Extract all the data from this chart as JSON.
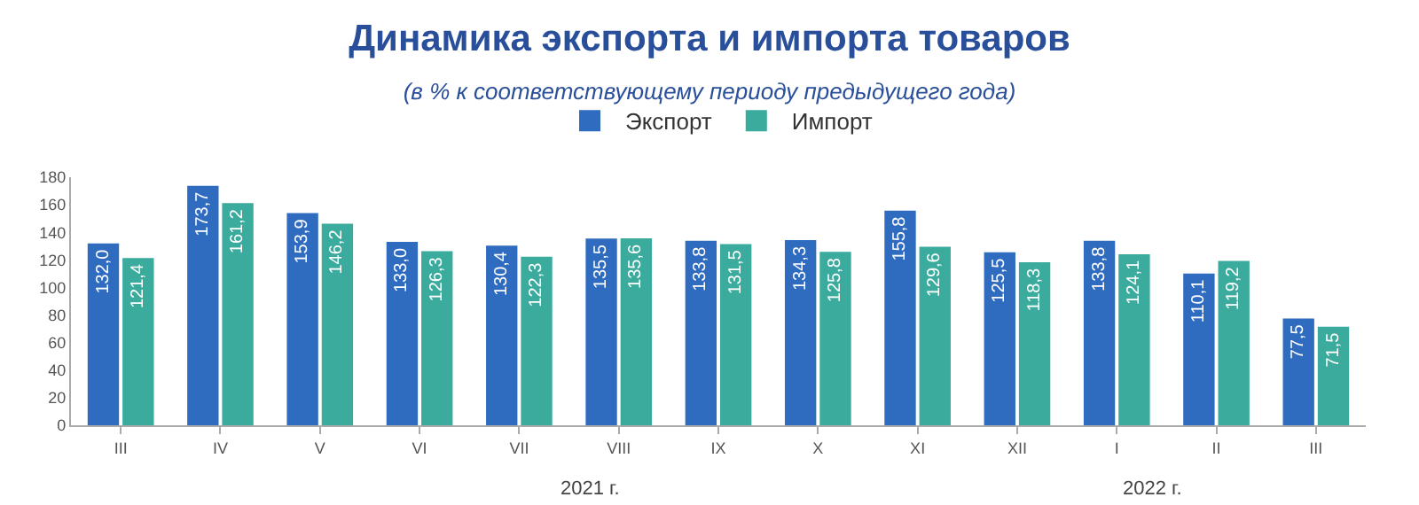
{
  "chart_data": {
    "type": "bar",
    "title": "Динамика экспорта и импорта товаров",
    "subtitle": "(в % к соответствующему периоду предыдущего года)",
    "categories": [
      "III",
      "IV",
      "V",
      "VI",
      "VII",
      "VIII",
      "IX",
      "X",
      "XI",
      "XII",
      "I",
      "II",
      "III"
    ],
    "series": [
      {
        "name": "Экспорт",
        "color": "#2f6cc0",
        "values": [
          132.0,
          173.7,
          153.9,
          133.0,
          130.4,
          135.5,
          133.8,
          134.3,
          155.8,
          125.5,
          133.8,
          110.1,
          77.5
        ],
        "value_labels": [
          "132,0",
          "173,7",
          "153,9",
          "133,0",
          "130,4",
          "135,5",
          "133,8",
          "134,3",
          "155,8",
          "125,5",
          "133,8",
          "110,1",
          "77,5"
        ]
      },
      {
        "name": "Импорт",
        "color": "#3aab9c",
        "values": [
          121.4,
          161.2,
          146.2,
          126.3,
          122.3,
          135.6,
          131.5,
          125.8,
          129.6,
          118.3,
          124.1,
          119.2,
          71.5
        ],
        "value_labels": [
          "121,4",
          "161,2",
          "146,2",
          "126,3",
          "122,3",
          "135,6",
          "131,5",
          "125,8",
          "129,6",
          "118,3",
          "124,1",
          "119,2",
          "71,5"
        ]
      }
    ],
    "ylim": [
      0,
      180
    ],
    "yticks": [
      0,
      20,
      40,
      60,
      80,
      100,
      120,
      140,
      160,
      180
    ],
    "legend": "top",
    "annotations": [
      "2021 г.",
      "2022 г."
    ]
  }
}
